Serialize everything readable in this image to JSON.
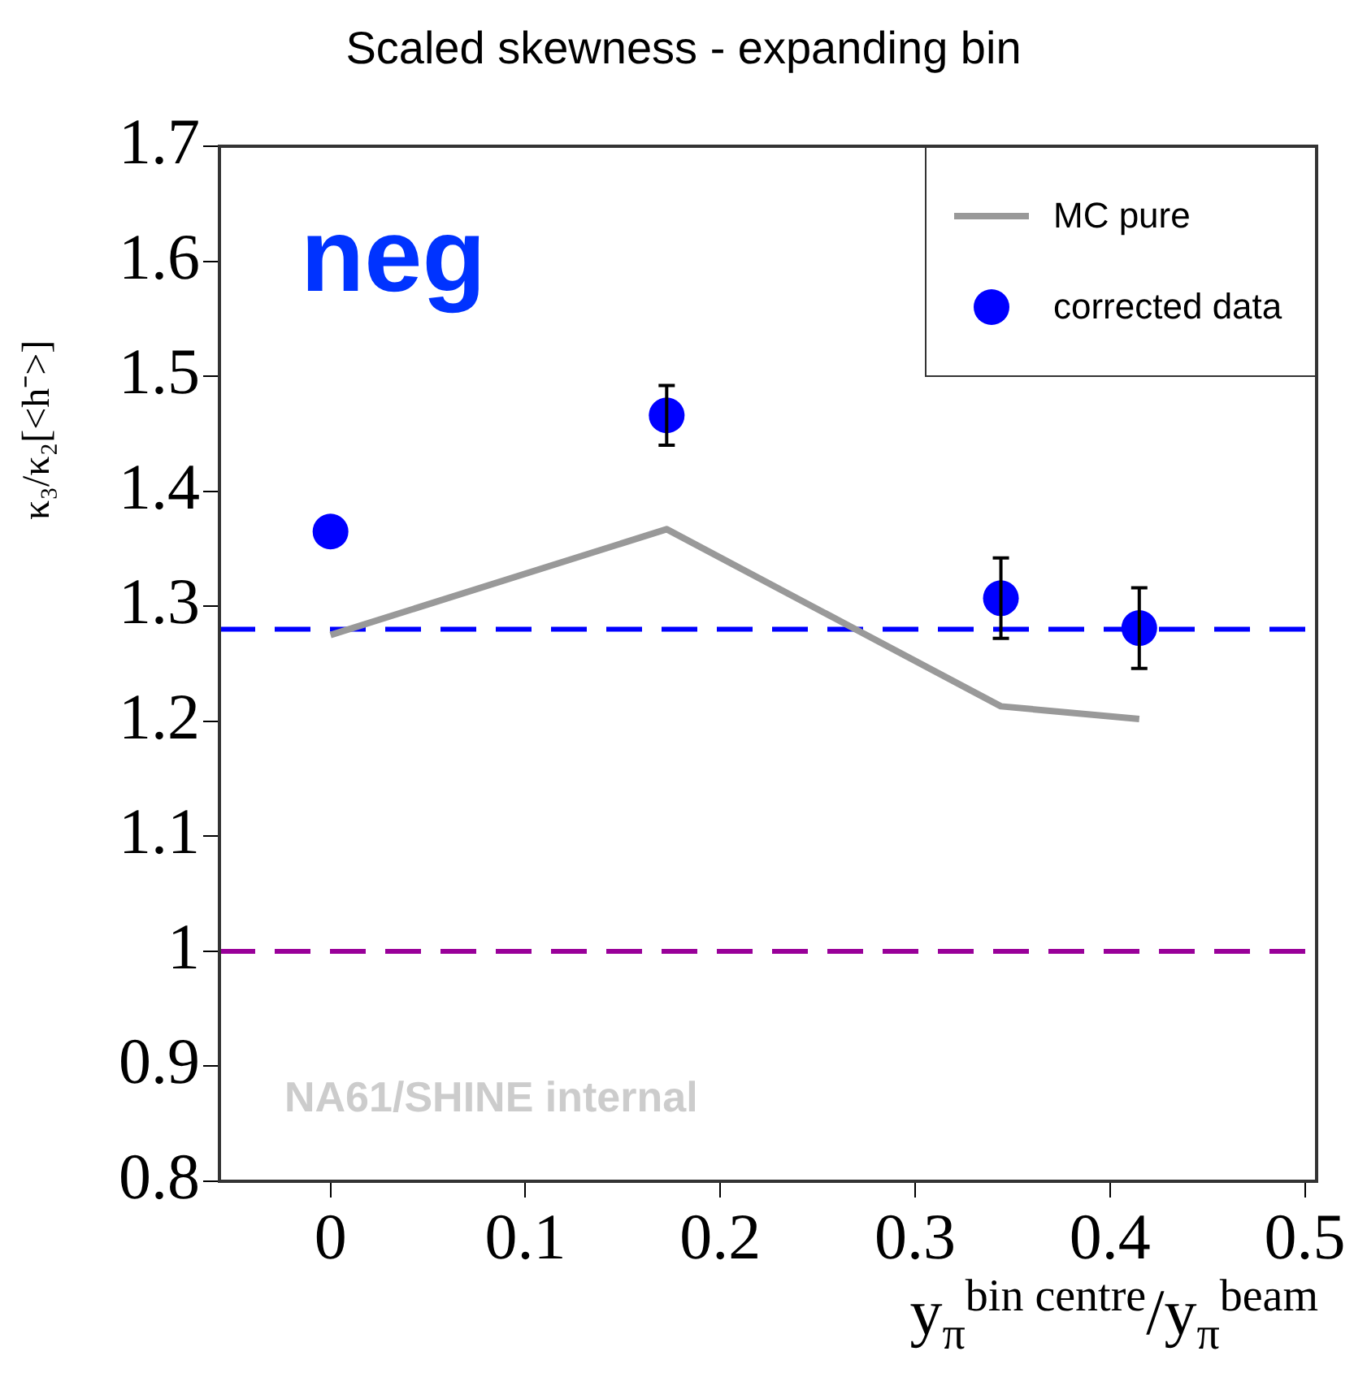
{
  "chart_data": {
    "type": "scatter",
    "title": "Scaled skewness - expanding bin",
    "xlabel": "y$_{π}$$^{bin centre}$/y$_{π}$$^{beam}$",
    "ylabel": "κ₃/κ₂[<h⁻>]",
    "xlim": [
      -0.057,
      0.506
    ],
    "xticks": [
      0,
      0.1,
      0.2,
      0.3,
      0.4,
      0.5
    ],
    "ylim": [
      0.8,
      1.7
    ],
    "yticks": [
      0.8,
      0.9,
      1,
      1.1,
      1.2,
      1.3,
      1.4,
      1.5,
      1.6,
      1.7
    ],
    "grid": false,
    "legend": "top right",
    "marker": "circle",
    "series": [
      {
        "name": "MC pure",
        "type": "line",
        "color": "#999999",
        "line_style": "solid",
        "marker": "none",
        "x": [
          0,
          0.1725,
          0.344,
          0.415
        ],
        "values": [
          1.275,
          1.367,
          1.213,
          1.202
        ]
      },
      {
        "name": "corrected data",
        "color": "#0000ff",
        "x": [
          0,
          0.1725,
          0.344,
          0.415
        ],
        "values": [
          1.365,
          1.466,
          1.307,
          1.281
        ],
        "errors": [
          null,
          0.026,
          0.035,
          0.035
        ]
      }
    ],
    "ref_lines": [
      {
        "axis": "y",
        "value": 1.28,
        "label": null,
        "color": "#0000ff",
        "line_style": "dashed"
      },
      {
        "axis": "y",
        "value": 1,
        "label": null,
        "color": "#990099",
        "line_style": "dashed"
      }
    ],
    "annotations": [
      "neg",
      "NA61/SHINE internal"
    ]
  }
}
